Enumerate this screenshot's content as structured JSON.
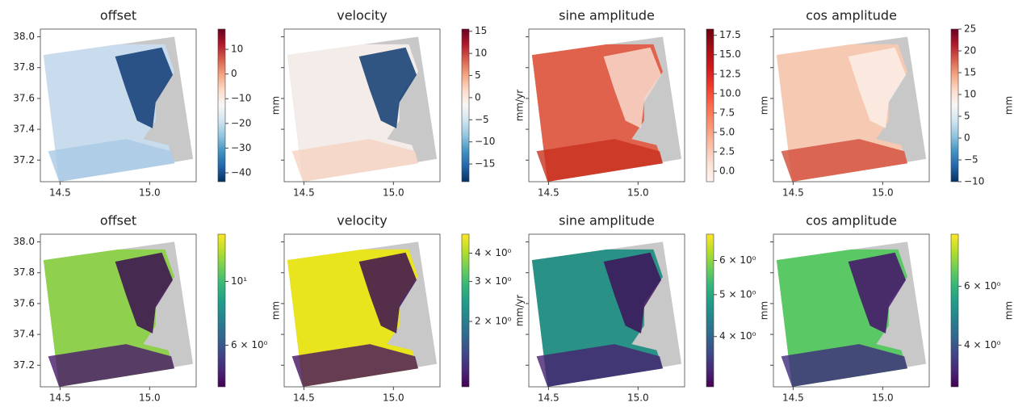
{
  "chart_data": [
    {
      "type": "map",
      "title": "offset",
      "xlim": [
        14.39,
        15.26
      ],
      "ylim": [
        37.06,
        38.05
      ],
      "xticks": [
        14.5,
        {
          "value": 15,
          "label": "15.0"
        }
      ],
      "yticks": [
        37.2,
        37.4,
        37.6,
        37.8,
        {
          "value": 38,
          "label": "38.0"
        }
      ],
      "ytick_labels": true,
      "colorbar": {
        "label": "mm",
        "colormap": "RdBu_r",
        "log": false,
        "lim": [
          -43.6,
          18.2
        ],
        "ticks": [
          {
            "value": 10,
            "label": "10"
          },
          0,
          {
            "value": -10,
            "label": "−10"
          },
          {
            "value": -20,
            "label": "−20"
          },
          {
            "value": -30,
            "label": "−30"
          },
          {
            "value": -40,
            "label": "−40"
          }
        ]
      }
    },
    {
      "type": "map",
      "title": "velocity",
      "xlim": [
        14.39,
        15.26
      ],
      "ylim": [
        37.06,
        38.05
      ],
      "xticks": [
        14.5,
        {
          "value": 15,
          "label": "15.0"
        }
      ],
      "yticks": [
        37.2,
        37.4,
        37.6,
        37.8,
        38
      ],
      "ytick_labels": false,
      "colorbar": {
        "label": "mm/yr",
        "colormap": "RdBu_r",
        "log": false,
        "lim": [
          -19,
          15.5
        ],
        "ticks": [
          15,
          10,
          5,
          0,
          {
            "value": -5,
            "label": "−5"
          },
          {
            "value": -10,
            "label": "−10"
          },
          {
            "value": -15,
            "label": "−15"
          }
        ]
      }
    },
    {
      "type": "map",
      "title": "sine amplitude",
      "xlim": [
        14.39,
        15.26
      ],
      "ylim": [
        37.06,
        38.05
      ],
      "xticks": [
        14.5,
        {
          "value": 15,
          "label": "15.0"
        }
      ],
      "yticks": [
        37.2,
        37.4,
        37.6,
        37.8,
        38
      ],
      "ytick_labels": false,
      "colorbar": {
        "label": "mm",
        "colormap": "Reds",
        "log": false,
        "lim": [
          -1.35,
          18.3
        ],
        "ticks": [
          {
            "value": 0,
            "label": "0.0"
          },
          2.5,
          {
            "value": 5,
            "label": "5.0"
          },
          7.5,
          {
            "value": 10,
            "label": "10.0"
          },
          12.5,
          {
            "value": 15,
            "label": "15.0"
          },
          17.5
        ]
      }
    },
    {
      "type": "map",
      "title": "cos amplitude",
      "xlim": [
        14.39,
        15.26
      ],
      "ylim": [
        37.06,
        38.05
      ],
      "xticks": [
        14.5,
        {
          "value": 15,
          "label": "15.0"
        }
      ],
      "yticks": [
        37.2,
        37.4,
        37.6,
        37.8,
        38
      ],
      "ytick_labels": false,
      "colorbar": {
        "label": "mm",
        "colormap": "RdBu_r",
        "log": false,
        "lim": [
          -10,
          25
        ],
        "ticks": [
          25,
          20,
          15,
          10,
          5,
          0,
          {
            "value": -5,
            "label": "−5"
          },
          {
            "value": -10,
            "label": "−10"
          }
        ]
      }
    },
    {
      "type": "map",
      "title": "offset",
      "xlim": [
        14.39,
        15.26
      ],
      "ylim": [
        37.06,
        38.05
      ],
      "xticks": [
        14.5,
        {
          "value": 15,
          "label": "15.0"
        }
      ],
      "yticks": [
        37.2,
        37.4,
        37.6,
        37.8,
        {
          "value": 38,
          "label": "38.0"
        }
      ],
      "ytick_labels": true,
      "colorbar": {
        "label": "mm",
        "colormap": "viridis",
        "log": true,
        "lim": [
          4.3,
          14.6
        ],
        "ticks": [
          {
            "value": 10,
            "label": "10¹"
          },
          {
            "value": 6,
            "label": "6 × 10⁰"
          }
        ]
      }
    },
    {
      "type": "map",
      "title": "velocity",
      "xlim": [
        14.39,
        15.26
      ],
      "ylim": [
        37.06,
        38.05
      ],
      "xticks": [
        14.5,
        {
          "value": 15,
          "label": "15.0"
        }
      ],
      "yticks": [
        37.2,
        37.4,
        37.6,
        37.8,
        38
      ],
      "ytick_labels": false,
      "colorbar": {
        "label": "mm/yr",
        "colormap": "viridis",
        "log": true,
        "lim": [
          1.03,
          4.85
        ],
        "ticks": [
          {
            "value": 4,
            "label": "4 × 10⁰"
          },
          {
            "value": 3,
            "label": "3 × 10⁰"
          },
          {
            "value": 2,
            "label": "2 × 10⁰"
          }
        ]
      }
    },
    {
      "type": "map",
      "title": "sine amplitude",
      "xlim": [
        14.39,
        15.26
      ],
      "ylim": [
        37.06,
        38.05
      ],
      "xticks": [
        14.5,
        {
          "value": 15,
          "label": "15.0"
        }
      ],
      "yticks": [
        37.2,
        37.4,
        37.6,
        37.8,
        38
      ],
      "ytick_labels": false,
      "colorbar": {
        "label": "mm",
        "colormap": "viridis",
        "log": true,
        "lim": [
          3.06,
          6.9
        ],
        "ticks": [
          {
            "value": 6,
            "label": "6 × 10⁰"
          },
          {
            "value": 5,
            "label": "5 × 10⁰"
          },
          {
            "value": 4,
            "label": "4 × 10⁰"
          }
        ]
      }
    },
    {
      "type": "map",
      "title": "cos amplitude",
      "xlim": [
        14.39,
        15.26
      ],
      "ylim": [
        37.06,
        38.05
      ],
      "xticks": [
        14.5,
        {
          "value": 15,
          "label": "15.0"
        }
      ],
      "yticks": [
        37.2,
        37.4,
        37.6,
        37.8,
        38
      ],
      "ytick_labels": false,
      "colorbar": {
        "label": "mm",
        "colormap": "viridis",
        "log": true,
        "lim": [
          3,
          8.6
        ],
        "ticks": [
          {
            "value": 6,
            "label": "6 × 10⁰"
          },
          {
            "value": 4,
            "label": "4 × 10⁰"
          }
        ]
      }
    }
  ]
}
